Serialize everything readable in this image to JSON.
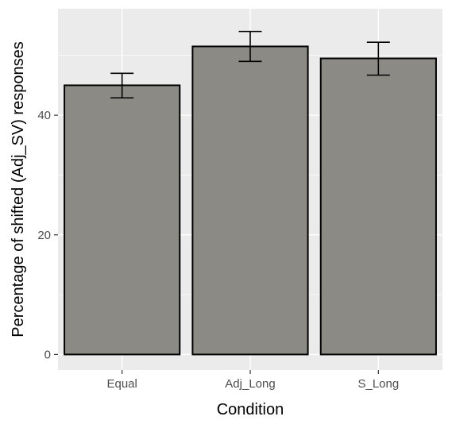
{
  "chart_data": {
    "type": "bar",
    "title": "",
    "xlabel": "Condition",
    "ylabel": "Percentage of shifted (Adj_SV) responses",
    "categories": [
      "Equal",
      "Adj_Long",
      "S_Long"
    ],
    "values": [
      45.0,
      51.5,
      49.5
    ],
    "error_low": [
      42.9,
      49.0,
      46.7
    ],
    "error_high": [
      47.0,
      54.0,
      52.2
    ],
    "ylim": [
      -2.6,
      57.8
    ],
    "yticks": [
      0,
      20,
      40
    ],
    "grid": true,
    "legend": "none",
    "colors": {
      "panel_background": "#ebebeb",
      "grid": "#ffffff",
      "bar_fill": "#8c8a85",
      "bar_stroke": "#000000",
      "error_bar": "#000000"
    }
  }
}
